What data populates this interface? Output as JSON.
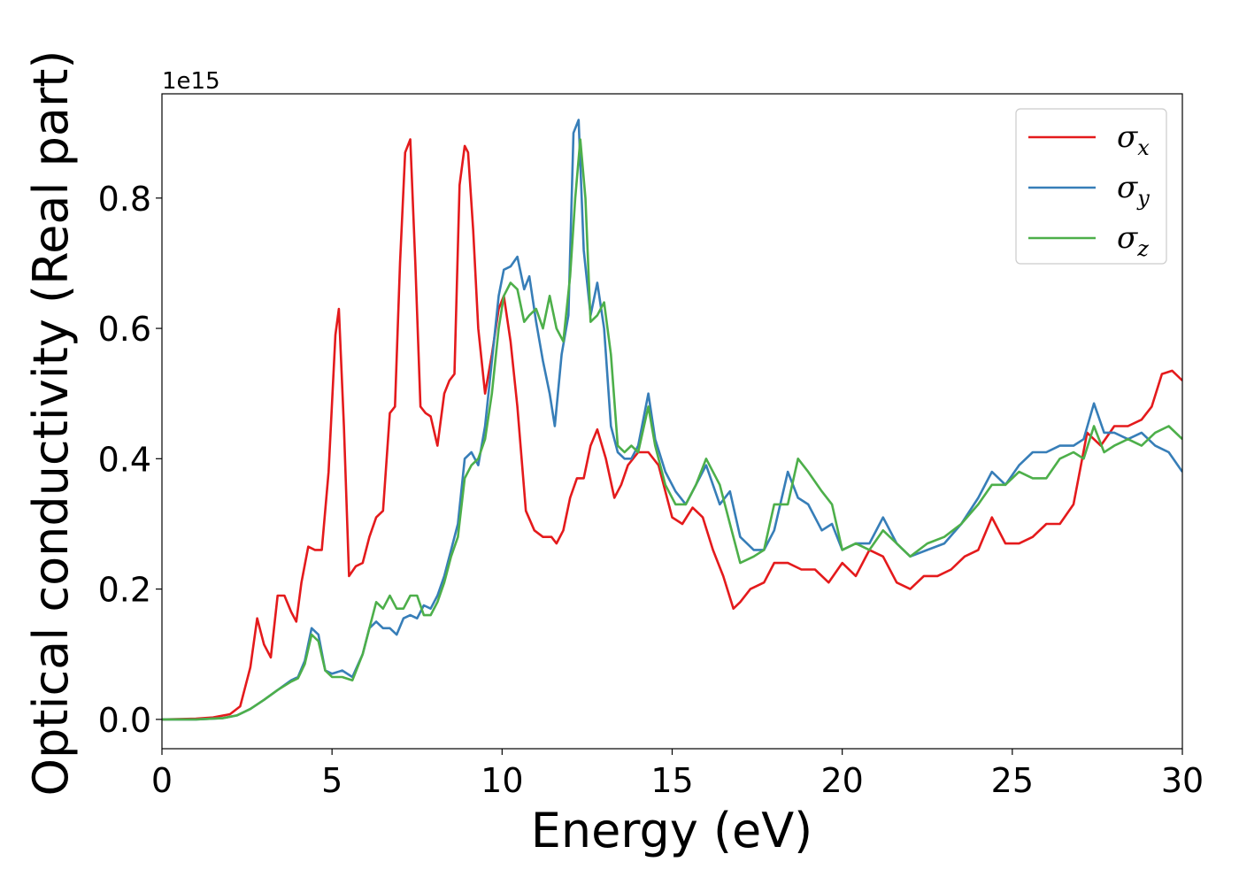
{
  "chart_data": {
    "type": "line",
    "title": "",
    "xlabel": "Energy (eV)",
    "ylabel": "Optical conductivity (Real part)",
    "y_offset_label": "1e15",
    "y_multiplier": 1000000000000000.0,
    "xlim": [
      0,
      30
    ],
    "ylim": [
      -0.045,
      0.96
    ],
    "xticks": [
      0,
      5,
      10,
      15,
      20,
      25,
      30
    ],
    "xtick_labels": [
      "0",
      "5",
      "10",
      "15",
      "20",
      "25",
      "30"
    ],
    "yticks": [
      0.0,
      0.2,
      0.4,
      0.6,
      0.8
    ],
    "ytick_labels": [
      "0.0",
      "0.2",
      "0.4",
      "0.6",
      "0.8"
    ],
    "grid": false,
    "legend_position": "top-right",
    "series": [
      {
        "name": "σx",
        "symbol": "σ",
        "subscript": "x",
        "color": "#e41a1c",
        "x": [
          0,
          1,
          1.5,
          2,
          2.3,
          2.6,
          2.8,
          3.0,
          3.2,
          3.4,
          3.6,
          3.8,
          3.95,
          4.1,
          4.3,
          4.5,
          4.7,
          4.9,
          5.1,
          5.2,
          5.35,
          5.5,
          5.7,
          5.9,
          6.1,
          6.3,
          6.5,
          6.7,
          6.85,
          7.0,
          7.15,
          7.3,
          7.45,
          7.6,
          7.75,
          7.9,
          8.1,
          8.3,
          8.45,
          8.6,
          8.75,
          8.9,
          9.0,
          9.15,
          9.3,
          9.5,
          9.7,
          9.9,
          10.05,
          10.25,
          10.45,
          10.7,
          10.95,
          11.2,
          11.45,
          11.6,
          11.8,
          12.0,
          12.2,
          12.4,
          12.6,
          12.8,
          13.05,
          13.3,
          13.5,
          13.7,
          14.0,
          14.3,
          14.6,
          14.8,
          15.0,
          15.3,
          15.6,
          15.9,
          16.2,
          16.5,
          16.8,
          17.0,
          17.3,
          17.7,
          18.0,
          18.4,
          18.8,
          19.2,
          19.6,
          20.0,
          20.4,
          20.8,
          21.2,
          21.6,
          22.0,
          22.4,
          22.8,
          23.2,
          23.6,
          24.0,
          24.4,
          24.8,
          25.2,
          25.6,
          26.0,
          26.4,
          26.8,
          27.2,
          27.6,
          28.0,
          28.4,
          28.8,
          29.1,
          29.4,
          29.7,
          30
        ],
        "y": [
          0,
          0.001,
          0.003,
          0.008,
          0.02,
          0.08,
          0.155,
          0.115,
          0.095,
          0.19,
          0.19,
          0.165,
          0.15,
          0.21,
          0.265,
          0.26,
          0.26,
          0.38,
          0.59,
          0.63,
          0.45,
          0.22,
          0.235,
          0.24,
          0.28,
          0.31,
          0.32,
          0.47,
          0.48,
          0.7,
          0.87,
          0.89,
          0.7,
          0.48,
          0.47,
          0.465,
          0.42,
          0.5,
          0.52,
          0.53,
          0.82,
          0.88,
          0.87,
          0.75,
          0.6,
          0.5,
          0.56,
          0.63,
          0.65,
          0.58,
          0.48,
          0.32,
          0.29,
          0.28,
          0.28,
          0.27,
          0.29,
          0.34,
          0.37,
          0.37,
          0.42,
          0.445,
          0.4,
          0.34,
          0.36,
          0.39,
          0.41,
          0.41,
          0.39,
          0.35,
          0.31,
          0.3,
          0.325,
          0.31,
          0.26,
          0.22,
          0.17,
          0.18,
          0.2,
          0.21,
          0.24,
          0.24,
          0.23,
          0.23,
          0.21,
          0.24,
          0.22,
          0.26,
          0.25,
          0.21,
          0.2,
          0.22,
          0.22,
          0.23,
          0.25,
          0.26,
          0.31,
          0.27,
          0.27,
          0.28,
          0.3,
          0.3,
          0.33,
          0.44,
          0.42,
          0.45,
          0.45,
          0.46,
          0.48,
          0.53,
          0.535,
          0.52
        ]
      },
      {
        "name": "σy",
        "symbol": "σ",
        "subscript": "y",
        "color": "#377eb8",
        "x": [
          0,
          1,
          1.8,
          2.2,
          2.6,
          3.0,
          3.4,
          3.8,
          4.0,
          4.2,
          4.4,
          4.6,
          4.8,
          5.0,
          5.3,
          5.6,
          5.9,
          6.1,
          6.3,
          6.5,
          6.7,
          6.9,
          7.1,
          7.3,
          7.5,
          7.7,
          7.9,
          8.1,
          8.3,
          8.5,
          8.7,
          8.9,
          9.1,
          9.3,
          9.5,
          9.7,
          9.9,
          10.05,
          10.25,
          10.45,
          10.65,
          10.8,
          11.0,
          11.2,
          11.4,
          11.55,
          11.75,
          11.95,
          12.1,
          12.25,
          12.4,
          12.6,
          12.8,
          13.0,
          13.2,
          13.4,
          13.6,
          13.8,
          14.0,
          14.3,
          14.5,
          14.8,
          15.1,
          15.4,
          15.7,
          16.0,
          16.4,
          16.7,
          17.0,
          17.4,
          17.7,
          18.0,
          18.4,
          18.7,
          19.0,
          19.4,
          19.7,
          20.0,
          20.4,
          20.8,
          21.2,
          21.6,
          22.0,
          22.5,
          23.0,
          23.5,
          24.0,
          24.4,
          24.8,
          25.2,
          25.6,
          26.0,
          26.4,
          26.8,
          27.1,
          27.4,
          27.7,
          28.0,
          28.4,
          28.8,
          29.2,
          29.6,
          30
        ],
        "y": [
          0,
          0,
          0.002,
          0.006,
          0.016,
          0.03,
          0.045,
          0.06,
          0.065,
          0.09,
          0.14,
          0.13,
          0.075,
          0.07,
          0.075,
          0.065,
          0.1,
          0.14,
          0.15,
          0.14,
          0.14,
          0.13,
          0.155,
          0.16,
          0.155,
          0.175,
          0.17,
          0.19,
          0.22,
          0.26,
          0.3,
          0.4,
          0.41,
          0.39,
          0.45,
          0.55,
          0.65,
          0.69,
          0.695,
          0.71,
          0.66,
          0.68,
          0.61,
          0.55,
          0.5,
          0.45,
          0.56,
          0.62,
          0.9,
          0.92,
          0.72,
          0.62,
          0.67,
          0.6,
          0.45,
          0.41,
          0.4,
          0.4,
          0.42,
          0.5,
          0.43,
          0.38,
          0.35,
          0.33,
          0.36,
          0.39,
          0.33,
          0.35,
          0.28,
          0.26,
          0.26,
          0.29,
          0.38,
          0.34,
          0.33,
          0.29,
          0.3,
          0.26,
          0.27,
          0.27,
          0.31,
          0.27,
          0.25,
          0.26,
          0.27,
          0.3,
          0.34,
          0.38,
          0.36,
          0.39,
          0.41,
          0.41,
          0.42,
          0.42,
          0.43,
          0.485,
          0.44,
          0.44,
          0.43,
          0.44,
          0.42,
          0.41,
          0.38
        ]
      },
      {
        "name": "σz",
        "symbol": "σ",
        "subscript": "z",
        "color": "#4daf4a",
        "x": [
          0,
          1,
          1.8,
          2.2,
          2.6,
          3.0,
          3.4,
          3.8,
          4.0,
          4.2,
          4.4,
          4.6,
          4.8,
          5.0,
          5.3,
          5.6,
          5.9,
          6.1,
          6.3,
          6.5,
          6.7,
          6.9,
          7.1,
          7.3,
          7.5,
          7.7,
          7.9,
          8.1,
          8.3,
          8.5,
          8.7,
          8.9,
          9.1,
          9.3,
          9.5,
          9.7,
          9.9,
          10.05,
          10.25,
          10.45,
          10.65,
          10.8,
          11.0,
          11.2,
          11.4,
          11.6,
          11.8,
          12.0,
          12.15,
          12.3,
          12.45,
          12.6,
          12.8,
          13.0,
          13.2,
          13.4,
          13.6,
          13.8,
          14.0,
          14.3,
          14.5,
          14.8,
          15.1,
          15.4,
          15.7,
          16.0,
          16.4,
          16.7,
          17.0,
          17.4,
          17.7,
          18.0,
          18.4,
          18.7,
          19.0,
          19.4,
          19.7,
          20.0,
          20.4,
          20.8,
          21.2,
          21.6,
          22.0,
          22.5,
          23.0,
          23.5,
          24.0,
          24.4,
          24.8,
          25.2,
          25.6,
          26.0,
          26.4,
          26.8,
          27.1,
          27.4,
          27.7,
          28.0,
          28.4,
          28.8,
          29.2,
          29.6,
          30
        ],
        "y": [
          0,
          0,
          0.002,
          0.006,
          0.016,
          0.03,
          0.045,
          0.058,
          0.063,
          0.085,
          0.13,
          0.12,
          0.075,
          0.065,
          0.065,
          0.06,
          0.1,
          0.14,
          0.18,
          0.17,
          0.19,
          0.17,
          0.17,
          0.19,
          0.19,
          0.16,
          0.16,
          0.18,
          0.21,
          0.25,
          0.28,
          0.37,
          0.39,
          0.4,
          0.43,
          0.5,
          0.6,
          0.65,
          0.67,
          0.66,
          0.61,
          0.62,
          0.63,
          0.6,
          0.65,
          0.6,
          0.58,
          0.68,
          0.8,
          0.89,
          0.8,
          0.61,
          0.62,
          0.64,
          0.56,
          0.42,
          0.41,
          0.42,
          0.41,
          0.48,
          0.42,
          0.36,
          0.33,
          0.33,
          0.36,
          0.4,
          0.36,
          0.3,
          0.24,
          0.25,
          0.26,
          0.33,
          0.33,
          0.4,
          0.38,
          0.35,
          0.33,
          0.26,
          0.27,
          0.26,
          0.29,
          0.27,
          0.25,
          0.27,
          0.28,
          0.3,
          0.33,
          0.36,
          0.36,
          0.38,
          0.37,
          0.37,
          0.4,
          0.41,
          0.4,
          0.45,
          0.41,
          0.42,
          0.43,
          0.42,
          0.44,
          0.45,
          0.43
        ]
      }
    ]
  }
}
